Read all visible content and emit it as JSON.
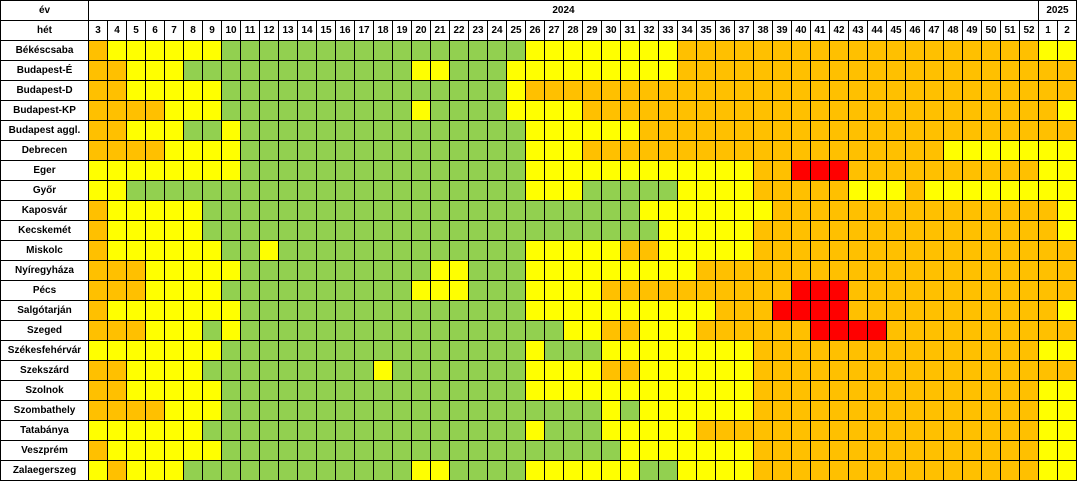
{
  "header": {
    "year_label": "év",
    "week_label": "hét",
    "years": [
      "2024",
      "2025"
    ],
    "weeks": [
      "3",
      "4",
      "5",
      "6",
      "7",
      "8",
      "9",
      "10",
      "11",
      "12",
      "13",
      "14",
      "15",
      "16",
      "17",
      "18",
      "19",
      "20",
      "21",
      "22",
      "23",
      "24",
      "25",
      "26",
      "27",
      "28",
      "29",
      "30",
      "31",
      "32",
      "33",
      "34",
      "35",
      "36",
      "37",
      "38",
      "39",
      "40",
      "41",
      "42",
      "43",
      "44",
      "45",
      "46",
      "47",
      "48",
      "49",
      "50",
      "51",
      "52",
      "1",
      "2"
    ]
  },
  "palette": {
    "g": "#92d050",
    "y": "#ffff00",
    "o": "#ffc000",
    "r": "#ff0000"
  },
  "rows": [
    {
      "label": "Békéscsaba",
      "cells": "oyyyyyyggggggggggggggggyyyyyyyyoooooooooooooooooooyy"
    },
    {
      "label": "Budapest-É",
      "cells": "ooyyyggggggggggggyygggyyyyyyyyyoooooooooooooooooooooy"
    },
    {
      "label": "Budapest-D",
      "cells": "ooyyyyygggggggggggggggyoooooooooooooooooooooooooooooo"
    },
    {
      "label": "Budapest-KP",
      "cells": "ooooyyyggggggggggyggggyyyyoooooooooooooooooooooooooy"
    },
    {
      "label": "Budapest aggl.",
      "cells": "ooyyyggygggggggggggggggyyyyyyoooooooooooooooooooooooo"
    },
    {
      "label": "Debrecen",
      "cells": "ooooyyyygggggggggggggggyyyoooooooooooooooooooyyyyyyy"
    },
    {
      "label": "Eger",
      "cells": "yyyyyyyygggggggggggggggyyyyyyyyyyyyoorrrooooooooooyy"
    },
    {
      "label": "Győr",
      "cells": "yygggggggggggggggggggggyyygggggyyyyoooooyyyoyyyyyyyy"
    },
    {
      "label": "Kaposvár",
      "cells": "oyyyyygggggggggggggggggggggggyyyyyyyoooooooooooooooyy"
    },
    {
      "label": "Kecskemét",
      "cells": "oyyyyyggggggggggggggggggggggggyyyyyooooooooooooooooyy"
    },
    {
      "label": "Miskolc",
      "cells": "oyyyyyyggygggggggggggggyyyyyooyyyyyoooooooooooooooooy"
    },
    {
      "label": "Nyíregyháza",
      "cells": "oooyyyyyggggggggggyygggyyyyyyyyyoooooooooooooooooooo"
    },
    {
      "label": "Pécs",
      "cells": "oooyyyyggggggggggyyygggyyyyoooooooooorrrooooooooooooy"
    },
    {
      "label": "Salgótarján",
      "cells": "oyyyyyyygggggggggggggggyyyyyyyyyyooorrrroooooooooooyy"
    },
    {
      "label": "Szeged",
      "cells": "oooyyygygggggggggggggggggyyooyyyoooooorrrroooooooooooy"
    },
    {
      "label": "Székesfehérvár",
      "cells": "yyyyyyyggggggggggggggggygggyyyyyyyyoooooooooooooooyy"
    },
    {
      "label": "Szekszárd",
      "cells": "ooyyyygggggggggygggggggyyyyooyyyyyyoooooooooooooooooy"
    },
    {
      "label": "Szolnok",
      "cells": "ooyyyyyggggggggggggggggyyyyyyyyyyyyoooooooooooooooyy"
    },
    {
      "label": "Szombathely",
      "cells": "ooooyyyggggggggggggggggggggygyyyyyyoooooooooooooooyy"
    },
    {
      "label": "Tatabánya",
      "cells": "yyyyyygggggggggggggggggygggyyyyyooooooooooooooooooyy"
    },
    {
      "label": "Veszprém",
      "cells": "oyyyyyygggggggggggggggggggggyyyyyyyoooooooooooooooyy"
    },
    {
      "label": "Zalaegerszeg",
      "cells": "yoyyyggggggggggggyyggggyyyyyyggyyyyoooooooooooooooyy"
    }
  ]
}
